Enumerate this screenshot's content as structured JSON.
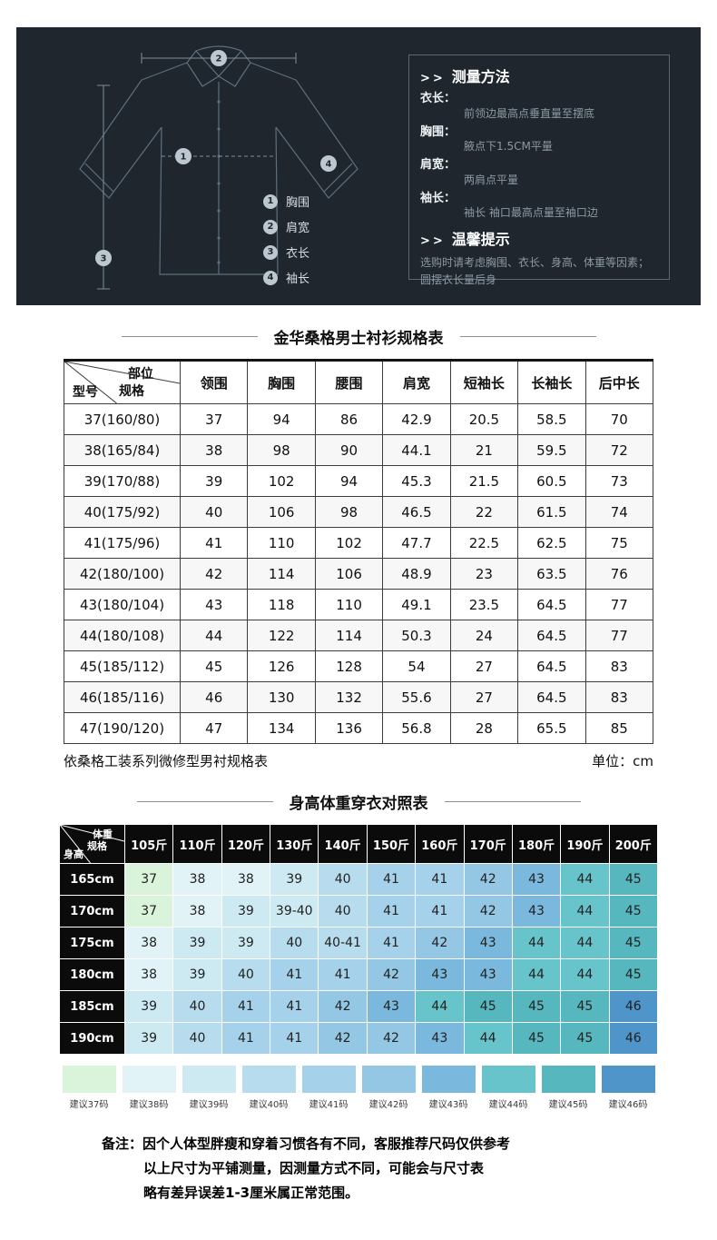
{
  "measure_panel": {
    "chevrons": ">>",
    "method_title": "测量方法",
    "items": [
      {
        "label": "衣长：",
        "desc": "前领边最高点垂直量至摆底"
      },
      {
        "label": "胸围：",
        "desc": "腋点下1.5CM平量"
      },
      {
        "label": "肩宽：",
        "desc": "两肩点平量"
      },
      {
        "label": "袖长：",
        "desc": "袖长 袖口最高点量至袖口边"
      }
    ],
    "tips_title": "温馨提示",
    "tips_text": "选购时请考虑胸围、衣长、身高、体重等因素；圆摆衣长量后身",
    "diagram_legend": [
      {
        "num": "1",
        "label": "胸围"
      },
      {
        "num": "2",
        "label": "肩宽"
      },
      {
        "num": "3",
        "label": "衣长"
      },
      {
        "num": "4",
        "label": "袖长"
      }
    ]
  },
  "size_table": {
    "title": "金华桑格男士衬衫规格表",
    "corner": {
      "top": "部位",
      "mid": "规格",
      "bottom": "型号"
    },
    "columns": [
      "领围",
      "胸围",
      "腰围",
      "肩宽",
      "短袖长",
      "长袖长",
      "后中长"
    ],
    "rows": [
      {
        "model": "37(160/80)",
        "values": [
          "37",
          "94",
          "86",
          "42.9",
          "20.5",
          "58.5",
          "70"
        ]
      },
      {
        "model": "38(165/84)",
        "values": [
          "38",
          "98",
          "90",
          "44.1",
          "21",
          "59.5",
          "72"
        ]
      },
      {
        "model": "39(170/88)",
        "values": [
          "39",
          "102",
          "94",
          "45.3",
          "21.5",
          "60.5",
          "73"
        ]
      },
      {
        "model": "40(175/92)",
        "values": [
          "40",
          "106",
          "98",
          "46.5",
          "22",
          "61.5",
          "74"
        ]
      },
      {
        "model": "41(175/96)",
        "values": [
          "41",
          "110",
          "102",
          "47.7",
          "22.5",
          "62.5",
          "75"
        ]
      },
      {
        "model": "42(180/100)",
        "values": [
          "42",
          "114",
          "106",
          "48.9",
          "23",
          "63.5",
          "76"
        ]
      },
      {
        "model": "43(180/104)",
        "values": [
          "43",
          "118",
          "110",
          "49.1",
          "23.5",
          "64.5",
          "77"
        ]
      },
      {
        "model": "44(180/108)",
        "values": [
          "44",
          "122",
          "114",
          "50.3",
          "24",
          "64.5",
          "77"
        ]
      },
      {
        "model": "45(185/112)",
        "values": [
          "45",
          "126",
          "128",
          "54",
          "27",
          "64.5",
          "83"
        ]
      },
      {
        "model": "46(185/116)",
        "values": [
          "46",
          "130",
          "132",
          "55.6",
          "27",
          "64.5",
          "83"
        ]
      },
      {
        "model": "47(190/120)",
        "values": [
          "47",
          "134",
          "136",
          "56.8",
          "28",
          "65.5",
          "85"
        ]
      }
    ],
    "footnote_left": "依桑格工装系列微修型男衬规格表",
    "footnote_right": "单位：cm"
  },
  "hw_table": {
    "title": "身高体重穿衣对照表",
    "corner": {
      "top": "体重",
      "mid": "规格",
      "bottom": "身高"
    },
    "columns": [
      "105斤",
      "110斤",
      "120斤",
      "130斤",
      "140斤",
      "150斤",
      "160斤",
      "170斤",
      "180斤",
      "190斤",
      "200斤"
    ],
    "rows": [
      {
        "height": "165cm",
        "values": [
          "37",
          "38",
          "38",
          "39",
          "40",
          "41",
          "41",
          "42",
          "43",
          "44",
          "45"
        ]
      },
      {
        "height": "170cm",
        "values": [
          "37",
          "38",
          "39",
          "39-40",
          "40",
          "41",
          "41",
          "42",
          "43",
          "44",
          "45"
        ]
      },
      {
        "height": "175cm",
        "values": [
          "38",
          "39",
          "39",
          "40",
          "40-41",
          "41",
          "42",
          "43",
          "44",
          "44",
          "45"
        ]
      },
      {
        "height": "180cm",
        "values": [
          "38",
          "39",
          "40",
          "41",
          "41",
          "42",
          "43",
          "43",
          "44",
          "44",
          "45"
        ]
      },
      {
        "height": "185cm",
        "values": [
          "39",
          "40",
          "41",
          "41",
          "42",
          "43",
          "44",
          "45",
          "45",
          "45",
          "46"
        ]
      },
      {
        "height": "190cm",
        "values": [
          "39",
          "40",
          "41",
          "41",
          "42",
          "42",
          "43",
          "44",
          "45",
          "45",
          "46"
        ]
      }
    ],
    "size_colors": {
      "37": "#d9f4db",
      "38": "#e2f3f8",
      "39": "#cdeaf3",
      "40": "#b7dcee",
      "41": "#a6d1ea",
      "42": "#94c7e3",
      "43": "#7ab9dd",
      "44": "#68c4cb",
      "45": "#57b7bf",
      "46": "#4f95c9"
    },
    "legend": [
      {
        "size": "37",
        "label": "建议37码"
      },
      {
        "size": "38",
        "label": "建议38码"
      },
      {
        "size": "39",
        "label": "建议39码"
      },
      {
        "size": "40",
        "label": "建议40码"
      },
      {
        "size": "41",
        "label": "建议41码"
      },
      {
        "size": "42",
        "label": "建议42码"
      },
      {
        "size": "43",
        "label": "建议43码"
      },
      {
        "size": "44",
        "label": "建议44码"
      },
      {
        "size": "45",
        "label": "建议45码"
      },
      {
        "size": "46",
        "label": "建议46码"
      }
    ]
  },
  "footer_note": {
    "lines": [
      "备注：因个人体型胖瘦和穿着习惯各有不同，客服推荐尺码仅供参考",
      "以上尺寸为平铺测量，因测量方式不同，可能会与尺寸表",
      "略有差异误差1-3厘米属正常范围。"
    ]
  }
}
